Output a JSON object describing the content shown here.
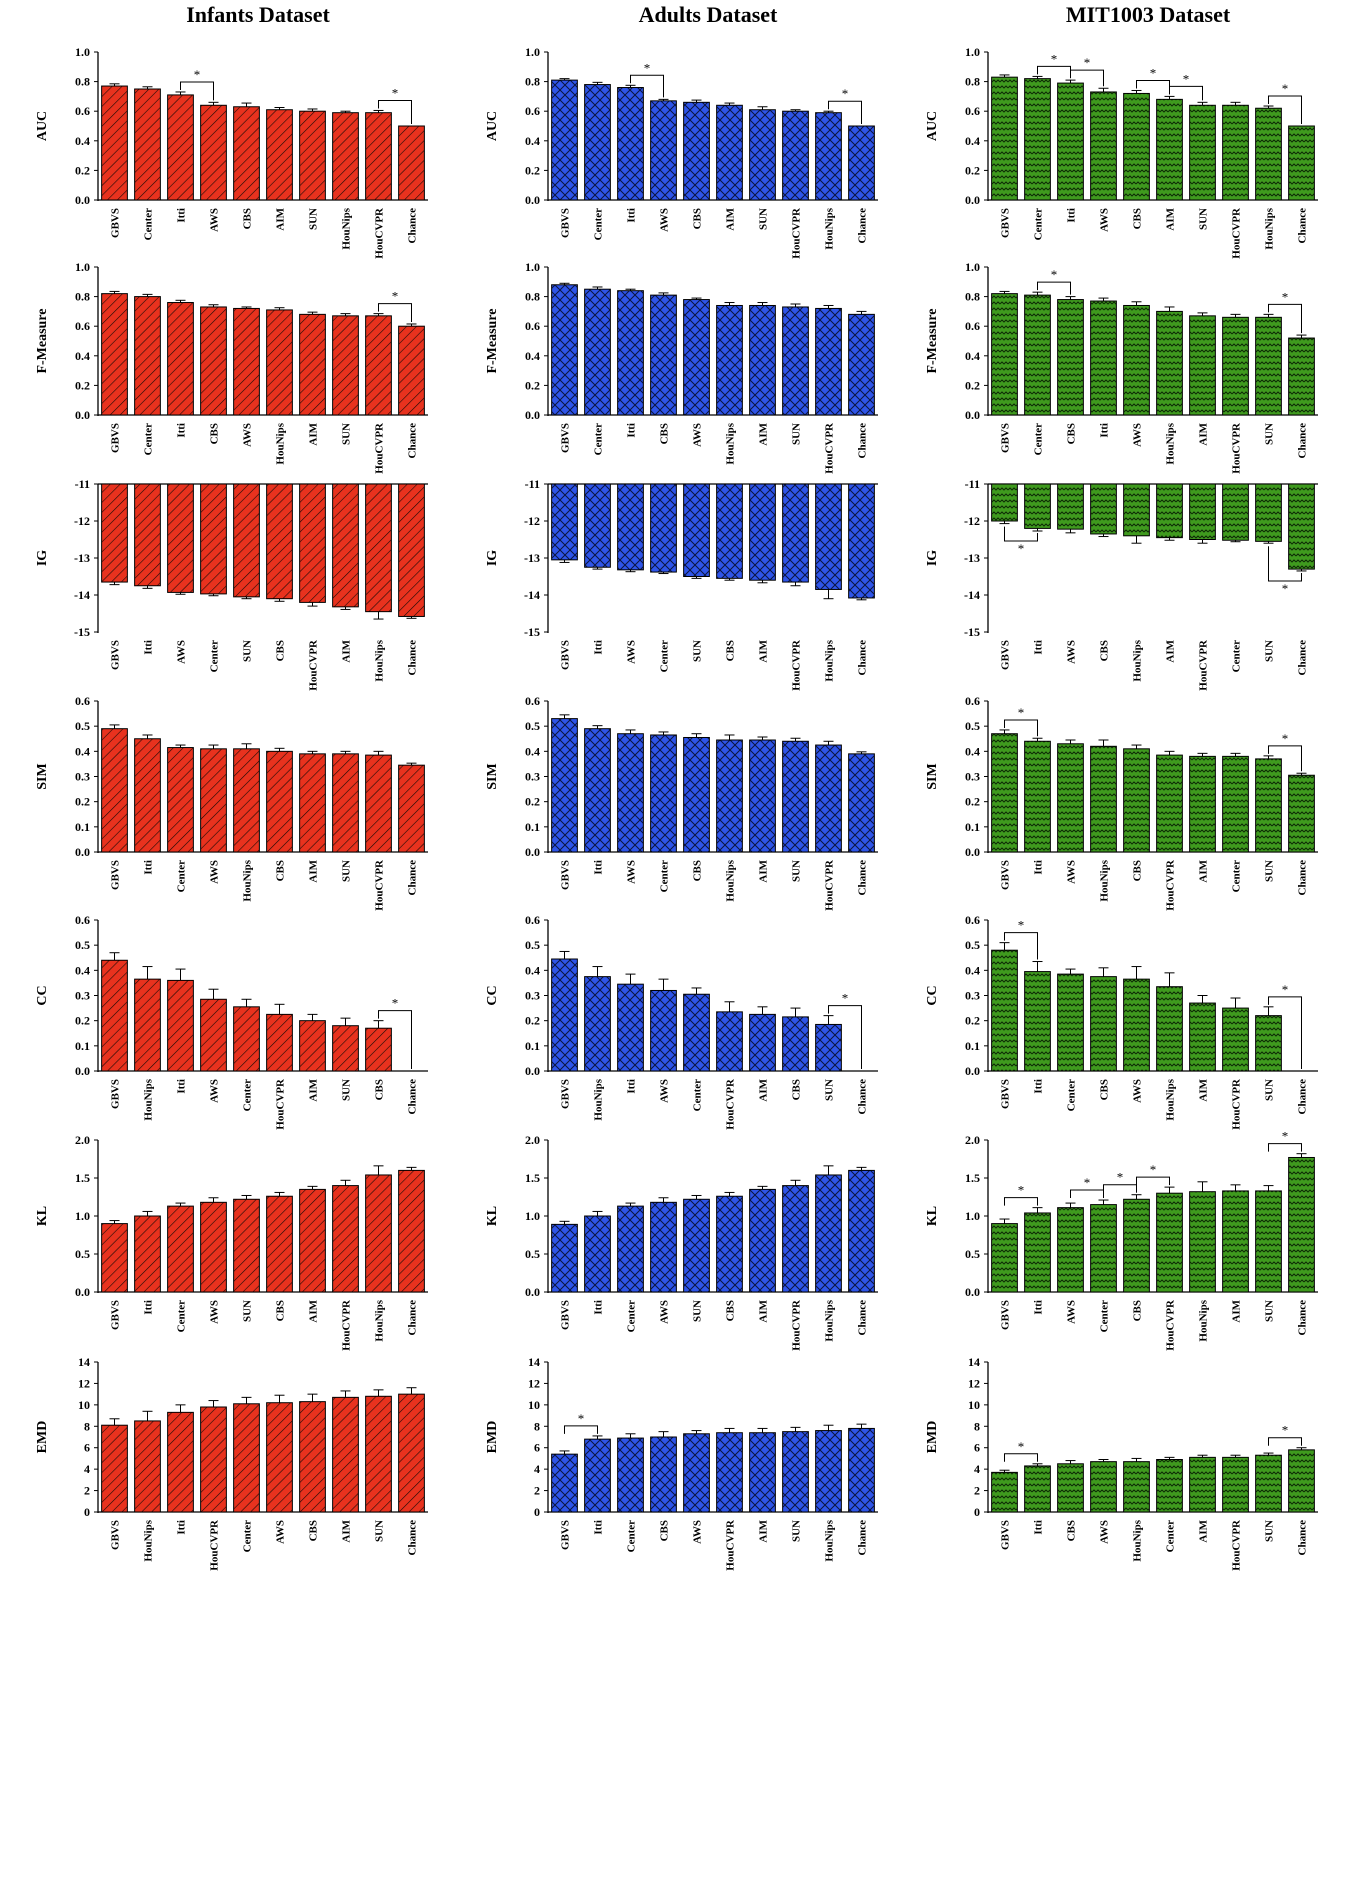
{
  "titles": [
    "Infants Dataset",
    "Adults Dataset",
    "MIT1003 Dataset"
  ],
  "colors": {
    "infants": "#e8321e",
    "adults": "#2f55e8",
    "mit": "#3f9a1e"
  },
  "patterns": {
    "infants": "diagonal-hatch",
    "adults": "cross-hatch",
    "mit": "zigzag"
  },
  "chart_data": [
    {
      "type": "bar",
      "dataset": "Infants Dataset",
      "ylabel": "AUC",
      "ylim": [
        0,
        1.0
      ],
      "yticks": [
        "0.0",
        "0.2",
        "0.4",
        "0.6",
        "0.8",
        "1.0"
      ],
      "categories": [
        "GBVS",
        "Center",
        "Itti",
        "AWS",
        "CBS",
        "AIM",
        "SUN",
        "HouNips",
        "HouCVPR",
        "Chance"
      ],
      "values": [
        0.77,
        0.75,
        0.71,
        0.64,
        0.63,
        0.61,
        0.6,
        0.59,
        0.59,
        0.5
      ],
      "errors": [
        0.015,
        0.015,
        0.02,
        0.02,
        0.025,
        0.015,
        0.015,
        0.01,
        0.015,
        0
      ],
      "sig": [
        {
          "from": 2,
          "to": 3,
          "dir": "up"
        },
        {
          "from": 8,
          "to": 9,
          "dir": "up"
        }
      ]
    },
    {
      "type": "bar",
      "dataset": "Adults Dataset",
      "ylabel": "AUC",
      "ylim": [
        0,
        1.0
      ],
      "yticks": [
        "0.0",
        "0.2",
        "0.4",
        "0.6",
        "0.8",
        "1.0"
      ],
      "categories": [
        "GBVS",
        "Center",
        "Itti",
        "AWS",
        "CBS",
        "AIM",
        "SUN",
        "HouCVPR",
        "HouNips",
        "Chance"
      ],
      "values": [
        0.81,
        0.78,
        0.76,
        0.67,
        0.66,
        0.64,
        0.61,
        0.6,
        0.59,
        0.5
      ],
      "errors": [
        0.01,
        0.015,
        0.015,
        0.01,
        0.015,
        0.015,
        0.02,
        0.01,
        0.01,
        0
      ],
      "sig": [
        {
          "from": 2,
          "to": 3,
          "dir": "up"
        },
        {
          "from": 8,
          "to": 9,
          "dir": "up"
        }
      ]
    },
    {
      "type": "bar",
      "dataset": "MIT1003 Dataset",
      "ylabel": "AUC",
      "ylim": [
        0,
        1.0
      ],
      "yticks": [
        "0.0",
        "0.2",
        "0.4",
        "0.6",
        "0.8",
        "1.0"
      ],
      "categories": [
        "GBVS",
        "Center",
        "Itti",
        "AWS",
        "CBS",
        "AIM",
        "SUN",
        "HouCVPR",
        "HouNips",
        "Chance"
      ],
      "values": [
        0.83,
        0.82,
        0.79,
        0.73,
        0.72,
        0.68,
        0.64,
        0.64,
        0.62,
        0.5
      ],
      "errors": [
        0.015,
        0.015,
        0.02,
        0.025,
        0.02,
        0.02,
        0.02,
        0.02,
        0.015,
        0
      ],
      "sig": [
        {
          "from": 1,
          "to": 2,
          "dir": "up"
        },
        {
          "from": 2,
          "to": 3,
          "dir": "up"
        },
        {
          "from": 4,
          "to": 5,
          "dir": "up"
        },
        {
          "from": 5,
          "to": 6,
          "dir": "up"
        },
        {
          "from": 8,
          "to": 9,
          "dir": "up"
        }
      ]
    },
    {
      "type": "bar",
      "dataset": "Infants Dataset",
      "ylabel": "F-Measure",
      "ylim": [
        0,
        1.0
      ],
      "yticks": [
        "0.0",
        "0.2",
        "0.4",
        "0.6",
        "0.8",
        "1.0"
      ],
      "categories": [
        "GBVS",
        "Center",
        "Itti",
        "CBS",
        "AWS",
        "HouNips",
        "AIM",
        "SUN",
        "HouCVPR",
        "Chance"
      ],
      "values": [
        0.82,
        0.8,
        0.76,
        0.73,
        0.72,
        0.71,
        0.68,
        0.67,
        0.67,
        0.6
      ],
      "errors": [
        0.015,
        0.015,
        0.015,
        0.015,
        0.01,
        0.015,
        0.015,
        0.015,
        0.015,
        0.015
      ],
      "sig": [
        {
          "from": 8,
          "to": 9,
          "dir": "up"
        }
      ]
    },
    {
      "type": "bar",
      "dataset": "Adults Dataset",
      "ylabel": "F-Measure",
      "ylim": [
        0,
        1.0
      ],
      "yticks": [
        "0.0",
        "0.2",
        "0.4",
        "0.6",
        "0.8",
        "1.0"
      ],
      "categories": [
        "GBVS",
        "Center",
        "Itti",
        "CBS",
        "AWS",
        "HouNips",
        "AIM",
        "SUN",
        "HouCVPR",
        "Chance"
      ],
      "values": [
        0.88,
        0.85,
        0.84,
        0.81,
        0.78,
        0.74,
        0.74,
        0.73,
        0.72,
        0.68
      ],
      "errors": [
        0.01,
        0.015,
        0.01,
        0.015,
        0.01,
        0.02,
        0.02,
        0.02,
        0.02,
        0.02
      ],
      "sig": []
    },
    {
      "type": "bar",
      "dataset": "MIT1003 Dataset",
      "ylabel": "F-Measure",
      "ylim": [
        0,
        1.0
      ],
      "yticks": [
        "0.0",
        "0.2",
        "0.4",
        "0.6",
        "0.8",
        "1.0"
      ],
      "categories": [
        "GBVS",
        "Center",
        "CBS",
        "Itti",
        "AWS",
        "HouNips",
        "AIM",
        "HouCVPR",
        "SUN",
        "Chance"
      ],
      "values": [
        0.82,
        0.81,
        0.78,
        0.77,
        0.74,
        0.7,
        0.67,
        0.66,
        0.66,
        0.52
      ],
      "errors": [
        0.015,
        0.02,
        0.02,
        0.02,
        0.025,
        0.03,
        0.02,
        0.02,
        0.02,
        0.02
      ],
      "sig": [
        {
          "from": 1,
          "to": 2,
          "dir": "up"
        },
        {
          "from": 8,
          "to": 9,
          "dir": "up"
        }
      ]
    },
    {
      "type": "bar",
      "dataset": "Infants Dataset",
      "ylabel": "IG",
      "ylim": [
        -15,
        -11
      ],
      "yticks": [
        "-15",
        "-14",
        "-13",
        "-12",
        "-11"
      ],
      "hanging": true,
      "categories": [
        "GBVS",
        "Itti",
        "AWS",
        "Center",
        "SUN",
        "CBS",
        "HouCVPR",
        "AIM",
        "HouNips",
        "Chance"
      ],
      "values": [
        -13.65,
        -13.75,
        -13.93,
        -13.97,
        -14.05,
        -14.1,
        -14.2,
        -14.32,
        -14.45,
        -14.58
      ],
      "errors": [
        0.07,
        0.07,
        0.05,
        0.05,
        0.05,
        0.07,
        0.1,
        0.07,
        0.2,
        0.05
      ],
      "sig": []
    },
    {
      "type": "bar",
      "dataset": "Adults Dataset",
      "ylabel": "IG",
      "ylim": [
        -15,
        -11
      ],
      "yticks": [
        "-15",
        "-14",
        "-13",
        "-12",
        "-11"
      ],
      "hanging": true,
      "categories": [
        "GBVS",
        "Itti",
        "AWS",
        "Center",
        "SUN",
        "CBS",
        "AIM",
        "HouCVPR",
        "HouNips",
        "Chance"
      ],
      "values": [
        -13.05,
        -13.25,
        -13.32,
        -13.38,
        -13.5,
        -13.55,
        -13.6,
        -13.65,
        -13.85,
        -14.08
      ],
      "errors": [
        0.07,
        0.05,
        0.05,
        0.04,
        0.05,
        0.05,
        0.07,
        0.1,
        0.25,
        0.05
      ],
      "sig": []
    },
    {
      "type": "bar",
      "dataset": "MIT1003 Dataset",
      "ylabel": "IG",
      "ylim": [
        -15,
        -11
      ],
      "yticks": [
        "-15",
        "-14",
        "-13",
        "-12",
        "-11"
      ],
      "hanging": true,
      "categories": [
        "GBVS",
        "Itti",
        "AWS",
        "CBS",
        "HouNips",
        "AIM",
        "HouCVPR",
        "Center",
        "SUN",
        "Chance"
      ],
      "values": [
        -12.0,
        -12.2,
        -12.22,
        -12.35,
        -12.4,
        -12.45,
        -12.5,
        -12.52,
        -12.55,
        -13.3
      ],
      "errors": [
        0.07,
        0.07,
        0.1,
        0.07,
        0.2,
        0.07,
        0.1,
        0.04,
        0.05,
        0.05
      ],
      "sig": [
        {
          "from": 0,
          "to": 1,
          "dir": "down"
        },
        {
          "from": 8,
          "to": 9,
          "dir": "down"
        }
      ]
    },
    {
      "type": "bar",
      "dataset": "Infants Dataset",
      "ylabel": "SIM",
      "ylim": [
        0,
        0.6
      ],
      "yticks": [
        "0.0",
        "0.1",
        "0.2",
        "0.3",
        "0.4",
        "0.5",
        "0.6"
      ],
      "categories": [
        "GBVS",
        "Itti",
        "Center",
        "AWS",
        "HouNips",
        "CBS",
        "AIM",
        "SUN",
        "HouCVPR",
        "Chance"
      ],
      "values": [
        0.49,
        0.45,
        0.415,
        0.41,
        0.41,
        0.4,
        0.39,
        0.39,
        0.385,
        0.345
      ],
      "errors": [
        0.015,
        0.015,
        0.01,
        0.015,
        0.02,
        0.012,
        0.01,
        0.01,
        0.015,
        0.008
      ],
      "sig": []
    },
    {
      "type": "bar",
      "dataset": "Adults Dataset",
      "ylabel": "SIM",
      "ylim": [
        0,
        0.6
      ],
      "yticks": [
        "0.0",
        "0.1",
        "0.2",
        "0.3",
        "0.4",
        "0.5",
        "0.6"
      ],
      "categories": [
        "GBVS",
        "Itti",
        "AWS",
        "Center",
        "CBS",
        "HouNips",
        "AIM",
        "SUN",
        "HouCVPR",
        "Chance"
      ],
      "values": [
        0.53,
        0.49,
        0.47,
        0.465,
        0.455,
        0.445,
        0.445,
        0.44,
        0.425,
        0.39
      ],
      "errors": [
        0.015,
        0.012,
        0.015,
        0.012,
        0.015,
        0.02,
        0.012,
        0.012,
        0.015,
        0.008
      ],
      "sig": []
    },
    {
      "type": "bar",
      "dataset": "MIT1003 Dataset",
      "ylabel": "SIM",
      "ylim": [
        0,
        0.6
      ],
      "yticks": [
        "0.0",
        "0.1",
        "0.2",
        "0.3",
        "0.4",
        "0.5",
        "0.6"
      ],
      "categories": [
        "GBVS",
        "Itti",
        "AWS",
        "HouNips",
        "CBS",
        "HouCVPR",
        "AIM",
        "Center",
        "SUN",
        "Chance"
      ],
      "values": [
        0.47,
        0.44,
        0.43,
        0.42,
        0.41,
        0.385,
        0.38,
        0.38,
        0.37,
        0.305
      ],
      "errors": [
        0.015,
        0.012,
        0.015,
        0.025,
        0.015,
        0.015,
        0.012,
        0.012,
        0.012,
        0.008
      ],
      "sig": [
        {
          "from": 0,
          "to": 1,
          "dir": "up"
        },
        {
          "from": 8,
          "to": 9,
          "dir": "up"
        }
      ]
    },
    {
      "type": "bar",
      "dataset": "Infants Dataset",
      "ylabel": "CC",
      "ylim": [
        0,
        0.6
      ],
      "yticks": [
        "0.0",
        "0.1",
        "0.2",
        "0.3",
        "0.4",
        "0.5",
        "0.6"
      ],
      "categories": [
        "GBVS",
        "HouNips",
        "Itti",
        "AWS",
        "Center",
        "HouCVPR",
        "AIM",
        "SUN",
        "CBS",
        "Chance"
      ],
      "values": [
        0.44,
        0.365,
        0.36,
        0.285,
        0.255,
        0.225,
        0.2,
        0.18,
        0.17,
        0.0
      ],
      "errors": [
        0.03,
        0.05,
        0.045,
        0.04,
        0.03,
        0.04,
        0.025,
        0.03,
        0.03,
        0
      ],
      "sig": [
        {
          "from": 8,
          "to": 9,
          "dir": "up"
        }
      ]
    },
    {
      "type": "bar",
      "dataset": "Adults Dataset",
      "ylabel": "CC",
      "ylim": [
        0,
        0.6
      ],
      "yticks": [
        "0.0",
        "0.1",
        "0.2",
        "0.3",
        "0.4",
        "0.5",
        "0.6"
      ],
      "categories": [
        "GBVS",
        "HouNips",
        "Itti",
        "AWS",
        "Center",
        "HouCVPR",
        "AIM",
        "CBS",
        "SUN",
        "Chance"
      ],
      "values": [
        0.445,
        0.375,
        0.345,
        0.32,
        0.305,
        0.235,
        0.225,
        0.215,
        0.185,
        0.0
      ],
      "errors": [
        0.03,
        0.04,
        0.04,
        0.045,
        0.025,
        0.04,
        0.03,
        0.035,
        0.035,
        0
      ],
      "sig": [
        {
          "from": 8,
          "to": 9,
          "dir": "up"
        }
      ]
    },
    {
      "type": "bar",
      "dataset": "MIT1003 Dataset",
      "ylabel": "CC",
      "ylim": [
        0,
        0.6
      ],
      "yticks": [
        "0.0",
        "0.1",
        "0.2",
        "0.3",
        "0.4",
        "0.5",
        "0.6"
      ],
      "categories": [
        "GBVS",
        "Itti",
        "Center",
        "CBS",
        "AWS",
        "HouNips",
        "AIM",
        "HouCVPR",
        "SUN",
        "Chance"
      ],
      "values": [
        0.48,
        0.395,
        0.385,
        0.375,
        0.365,
        0.335,
        0.27,
        0.25,
        0.22,
        0.0
      ],
      "errors": [
        0.03,
        0.04,
        0.02,
        0.035,
        0.05,
        0.055,
        0.03,
        0.04,
        0.035,
        0
      ],
      "sig": [
        {
          "from": 0,
          "to": 1,
          "dir": "up"
        },
        {
          "from": 8,
          "to": 9,
          "dir": "up"
        }
      ]
    },
    {
      "type": "bar",
      "dataset": "Infants Dataset",
      "ylabel": "KL",
      "ylim": [
        0,
        2.0
      ],
      "yticks": [
        "0.0",
        "0.5",
        "1.0",
        "1.5",
        "2.0"
      ],
      "categories": [
        "GBVS",
        "Itti",
        "Center",
        "AWS",
        "SUN",
        "CBS",
        "AIM",
        "HouCVPR",
        "HouNips",
        "Chance"
      ],
      "values": [
        0.9,
        1.0,
        1.13,
        1.18,
        1.22,
        1.26,
        1.35,
        1.4,
        1.54,
        1.6
      ],
      "errors": [
        0.04,
        0.06,
        0.04,
        0.06,
        0.05,
        0.05,
        0.04,
        0.07,
        0.12,
        0.04
      ],
      "sig": []
    },
    {
      "type": "bar",
      "dataset": "Adults Dataset",
      "ylabel": "KL",
      "ylim": [
        0,
        2.0
      ],
      "yticks": [
        "0.0",
        "0.5",
        "1.0",
        "1.5",
        "2.0"
      ],
      "categories": [
        "GBVS",
        "Itti",
        "Center",
        "AWS",
        "SUN",
        "CBS",
        "AIM",
        "HouCVPR",
        "HouNips",
        "Chance"
      ],
      "values": [
        0.89,
        1.0,
        1.13,
        1.18,
        1.22,
        1.26,
        1.35,
        1.4,
        1.54,
        1.6
      ],
      "errors": [
        0.04,
        0.06,
        0.04,
        0.06,
        0.05,
        0.05,
        0.04,
        0.07,
        0.12,
        0.04
      ],
      "sig": []
    },
    {
      "type": "bar",
      "dataset": "MIT1003 Dataset",
      "ylabel": "KL",
      "ylim": [
        0,
        2.0
      ],
      "yticks": [
        "0.0",
        "0.5",
        "1.0",
        "1.5",
        "2.0"
      ],
      "categories": [
        "GBVS",
        "Itti",
        "AWS",
        "Center",
        "CBS",
        "HouCVPR",
        "HouNips",
        "AIM",
        "SUN",
        "Chance"
      ],
      "values": [
        0.9,
        1.04,
        1.11,
        1.15,
        1.22,
        1.3,
        1.32,
        1.33,
        1.33,
        1.77
      ],
      "errors": [
        0.06,
        0.07,
        0.06,
        0.06,
        0.06,
        0.08,
        0.13,
        0.08,
        0.07,
        0.05
      ],
      "sig": [
        {
          "from": 0,
          "to": 1,
          "dir": "up"
        },
        {
          "from": 2,
          "to": 3,
          "dir": "up"
        },
        {
          "from": 3,
          "to": 4,
          "dir": "up"
        },
        {
          "from": 4,
          "to": 5,
          "dir": "up"
        },
        {
          "from": 8,
          "to": 9,
          "dir": "up"
        }
      ]
    },
    {
      "type": "bar",
      "dataset": "Infants Dataset",
      "ylabel": "EMD",
      "ylim": [
        0,
        14
      ],
      "yticks": [
        "0",
        "2",
        "4",
        "6",
        "8",
        "10",
        "12",
        "14"
      ],
      "categories": [
        "GBVS",
        "HouNips",
        "Itti",
        "HouCVPR",
        "Center",
        "AWS",
        "CBS",
        "AIM",
        "SUN",
        "Chance"
      ],
      "values": [
        8.1,
        8.5,
        9.3,
        9.8,
        10.1,
        10.2,
        10.3,
        10.7,
        10.8,
        11.0
      ],
      "errors": [
        0.6,
        0.9,
        0.7,
        0.6,
        0.6,
        0.7,
        0.7,
        0.6,
        0.6,
        0.6
      ],
      "sig": []
    },
    {
      "type": "bar",
      "dataset": "Adults Dataset",
      "ylabel": "EMD",
      "ylim": [
        0,
        14
      ],
      "yticks": [
        "0",
        "2",
        "4",
        "6",
        "8",
        "10",
        "12",
        "14"
      ],
      "categories": [
        "GBVS",
        "Itti",
        "Center",
        "CBS",
        "AWS",
        "HouCVPR",
        "AIM",
        "SUN",
        "HouNips",
        "Chance"
      ],
      "values": [
        5.4,
        6.8,
        6.9,
        7.0,
        7.3,
        7.4,
        7.4,
        7.5,
        7.6,
        7.8
      ],
      "errors": [
        0.3,
        0.3,
        0.4,
        0.5,
        0.3,
        0.4,
        0.4,
        0.4,
        0.5,
        0.4
      ],
      "sig": [
        {
          "from": 0,
          "to": 1,
          "dir": "up"
        }
      ]
    },
    {
      "type": "bar",
      "dataset": "MIT1003 Dataset",
      "ylabel": "EMD",
      "ylim": [
        0,
        14
      ],
      "yticks": [
        "0",
        "2",
        "4",
        "6",
        "8",
        "10",
        "12",
        "14"
      ],
      "categories": [
        "GBVS",
        "Itti",
        "CBS",
        "AWS",
        "HouNips",
        "Center",
        "AIM",
        "HouCVPR",
        "SUN",
        "Chance"
      ],
      "values": [
        3.7,
        4.3,
        4.5,
        4.7,
        4.7,
        4.9,
        5.1,
        5.1,
        5.3,
        5.8
      ],
      "errors": [
        0.2,
        0.2,
        0.3,
        0.2,
        0.3,
        0.2,
        0.2,
        0.2,
        0.2,
        0.2
      ],
      "sig": [
        {
          "from": 0,
          "to": 1,
          "dir": "up"
        },
        {
          "from": 8,
          "to": 9,
          "dir": "up"
        }
      ]
    }
  ]
}
